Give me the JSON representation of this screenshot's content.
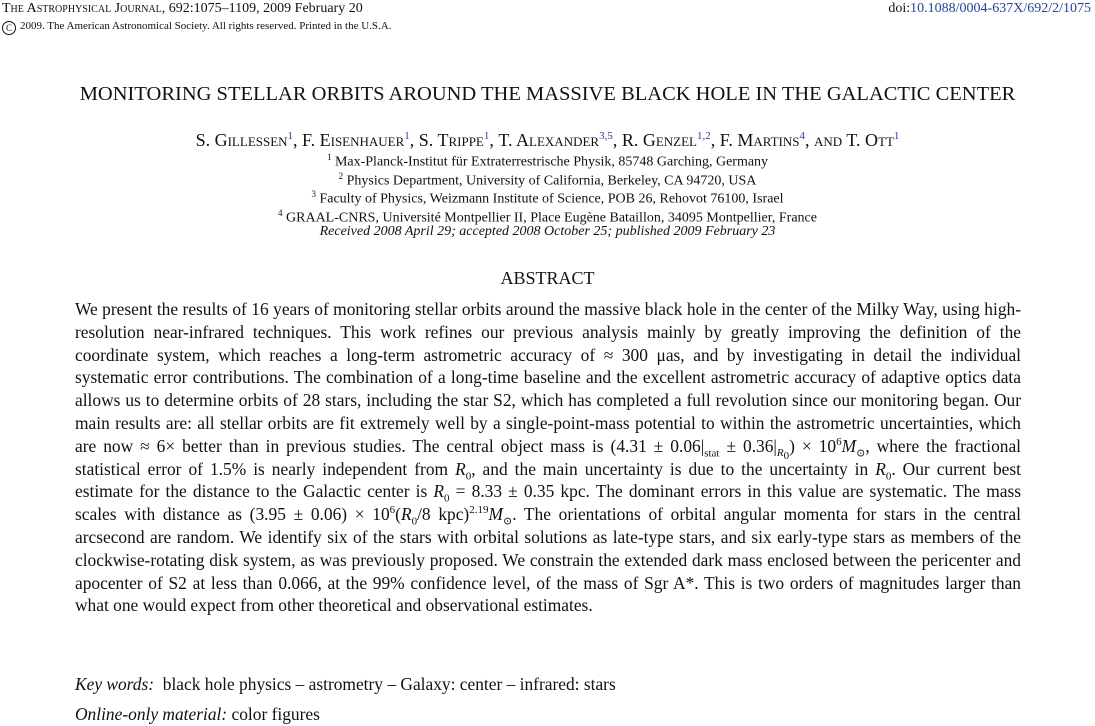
{
  "header": {
    "journal": "The Astrophysical Journal",
    "citation": ", 692:1075–1109, 2009 February 20",
    "doi_prefix": "doi:",
    "doi": "10.1088/0004-637X/692/2/1075",
    "copyright_symbol": "C",
    "copyright": "2009. The American Astronomical Society. All rights reserved. Printed in the U.S.A."
  },
  "title": "MONITORING STELLAR ORBITS AROUND THE MASSIVE BLACK HOLE IN THE GALACTIC CENTER",
  "authors": [
    {
      "name": "S. Gillessen",
      "sup": "1",
      "sep": ", "
    },
    {
      "name": "F. Eisenhauer",
      "sup": "1",
      "sep": ", "
    },
    {
      "name": "S. Trippe",
      "sup": "1",
      "sep": ", "
    },
    {
      "name": "T. Alexander",
      "sup": "3,5",
      "sep": ", "
    },
    {
      "name": "R. Genzel",
      "sup": "1,2",
      "sep": ", "
    },
    {
      "name": "F. Martins",
      "sup": "4",
      "sep": ", and "
    },
    {
      "name": "T. Ott",
      "sup": "1",
      "sep": ""
    }
  ],
  "affiliations": [
    {
      "num": "1",
      "text": " Max-Planck-Institut für Extraterrestrische Physik, 85748 Garching, Germany"
    },
    {
      "num": "2",
      "text": " Physics Department, University of California, Berkeley, CA 94720, USA"
    },
    {
      "num": "3",
      "text": " Faculty of Physics, Weizmann Institute of Science, POB 26, Rehovot 76100, Israel"
    },
    {
      "num": "4",
      "text": " GRAAL-CNRS, Université Montpellier II, Place Eugène Bataillon, 34095 Montpellier, France"
    }
  ],
  "received": "Received 2008 April 29; accepted 2008 October 25; published 2009 February 23",
  "abstract": {
    "heading": "ABSTRACT",
    "p1": "We present the results of 16 years of monitoring stellar orbits around the massive black hole in the center of the Milky Way, using high-resolution near-infrared techniques. This work refines our previous analysis mainly by greatly improving the definition of the coordinate system, which reaches a long-term astrometric accuracy of ≈ 300 μas, and by investigating in detail the individual systematic error contributions. The combination of a long-time baseline and the excellent astrometric accuracy of adaptive optics data allows us to determine orbits of 28 stars, including the star S2, which has completed a full revolution since our monitoring began. Our main results are: all stellar orbits are fit extremely well by a single-point-mass potential to within the astrometric uncertainties, which are now ≈ 6× better than in previous studies. The central object mass is (4.31 ± 0.06|",
    "stat": "stat",
    "p2": " ± 0.36|",
    "r0sub": "R",
    "zero": "0",
    "p3": ") × 10",
    "six": "6",
    "msun": "M",
    "sun": "⊙",
    "p4": ", where the fractional statistical error of 1.5% is nearly independent from ",
    "p5": ", and the main uncertainty is due to the uncertainty in ",
    "p6": ". Our current best estimate for the distance to the Galactic center is ",
    "p7": " = 8.33 ± 0.35 kpc. The dominant errors in this value are systematic. The mass scales with distance as (3.95 ± 0.06) × 10",
    "p8": "(",
    "p9": "/8 kpc)",
    "exp219": "2.19",
    "p10": ". The orientations of orbital angular momenta for stars in the central arcsecond are random. We identify six of the stars with orbital solutions as late-type stars, and six early-type stars as members of the clockwise-rotating disk system, as was previously proposed. We constrain the extended dark mass enclosed between the pericenter and apocenter of S2 at less than 0.066, at the 99% confidence level, of the mass of Sgr A*. This is two orders of magnitudes larger than what one would expect from other theoretical and observational estimates."
  },
  "keywords": {
    "label": "Key words:",
    "text": "black hole physics – astrometry – Galaxy: center – infrared: stars"
  },
  "online": {
    "label": "Online-only material:",
    "text": "color figures"
  }
}
